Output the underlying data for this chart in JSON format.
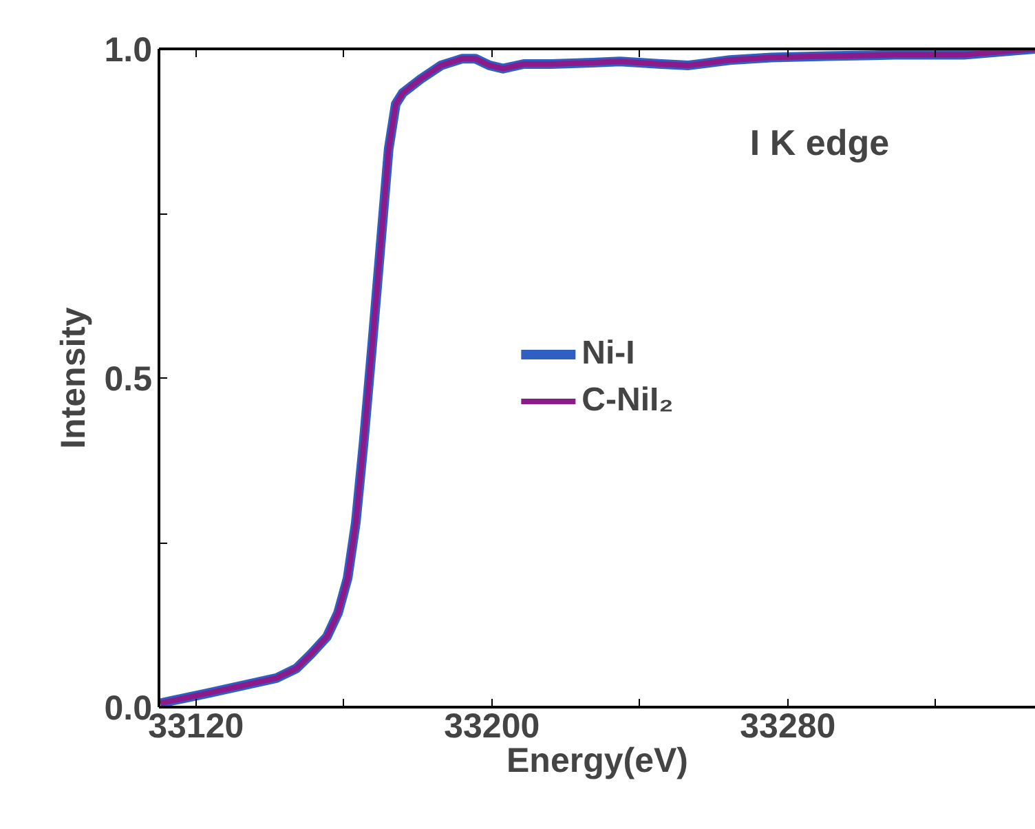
{
  "chart_data": {
    "type": "line",
    "xlabel": "Energy(eV)",
    "ylabel": "Intensity",
    "annotations": [
      "I K edge"
    ],
    "x": [
      33110.4,
      33123.1,
      33141.7,
      33147.2,
      33151.0,
      33155.4,
      33158.4,
      33161.0,
      33163.2,
      33165.4,
      33167.7,
      33169.9,
      33172.1,
      33174.0,
      33175.9,
      33180.7,
      33186.3,
      33191.9,
      33195.6,
      33199.3,
      33203.0,
      33208.6,
      33216.0,
      33227.2,
      33234.6,
      33245.8,
      33253.2,
      33264.3,
      33275.5,
      33290.4,
      33309.0,
      33327.6,
      33347.0
    ],
    "series": [
      {
        "name": "Ni-I",
        "color": "#2f5fc0",
        "values": [
          0.006,
          0.021,
          0.044,
          0.059,
          0.08,
          0.107,
          0.143,
          0.196,
          0.28,
          0.406,
          0.554,
          0.701,
          0.848,
          0.916,
          0.933,
          0.954,
          0.975,
          0.985,
          0.985,
          0.975,
          0.97,
          0.977,
          0.977,
          0.979,
          0.981,
          0.977,
          0.975,
          0.983,
          0.987,
          0.989,
          0.991,
          0.991,
          1.0
        ]
      },
      {
        "name": "C-NiI₂",
        "color": "#8b1a8b",
        "values": [
          0.006,
          0.021,
          0.044,
          0.059,
          0.08,
          0.107,
          0.143,
          0.196,
          0.28,
          0.406,
          0.554,
          0.701,
          0.848,
          0.916,
          0.933,
          0.954,
          0.975,
          0.985,
          0.985,
          0.975,
          0.97,
          0.977,
          0.977,
          0.979,
          0.981,
          0.977,
          0.975,
          0.983,
          0.987,
          0.989,
          0.991,
          0.991,
          1.0
        ]
      }
    ],
    "xlim": [
      33110,
      33347
    ],
    "xticks": [
      33120,
      {
        "value": 33160,
        "label": null
      },
      33200,
      {
        "value": 33240,
        "label": null
      },
      33280,
      {
        "value": 33320,
        "label": null
      }
    ],
    "ylim": [
      0,
      1.0
    ],
    "yticks": [
      {
        "value": 0,
        "label": "0.0"
      },
      {
        "value": 0.25,
        "label": null
      },
      0.5,
      {
        "value": 0.75,
        "label": null
      },
      {
        "value": 1.0,
        "label": "1.0"
      }
    ],
    "grid": false,
    "legend": "center",
    "line_style": "solid",
    "marker": "none"
  }
}
